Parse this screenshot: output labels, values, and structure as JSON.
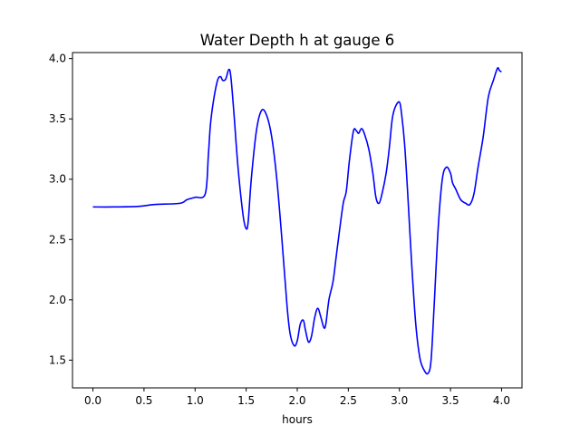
{
  "chart_data": {
    "type": "line",
    "title": "Water Depth h at gauge 6",
    "xlabel": "hours",
    "ylabel": "",
    "xlim": [
      -0.2,
      4.2
    ],
    "ylim": [
      1.27,
      4.05
    ],
    "xticks": [
      0.0,
      0.5,
      1.0,
      1.5,
      2.0,
      2.5,
      3.0,
      3.5,
      4.0
    ],
    "xtick_labels": [
      "0.0",
      "0.5",
      "1.0",
      "1.5",
      "2.0",
      "2.5",
      "3.0",
      "3.5",
      "4.0"
    ],
    "yticks": [
      1.5,
      2.0,
      2.5,
      3.0,
      3.5,
      4.0
    ],
    "ytick_labels": [
      "1.5",
      "2.0",
      "2.5",
      "3.0",
      "3.5",
      "4.0"
    ],
    "grid": false,
    "series": [
      {
        "name": "",
        "color": "#0000ff",
        "x": [
          0.0,
          0.2,
          0.45,
          0.6,
          0.85,
          0.92,
          1.0,
          1.1,
          1.13,
          1.15,
          1.18,
          1.22,
          1.25,
          1.27,
          1.3,
          1.33,
          1.35,
          1.38,
          1.42,
          1.47,
          1.5,
          1.52,
          1.55,
          1.6,
          1.65,
          1.7,
          1.75,
          1.8,
          1.85,
          1.9,
          1.93,
          1.97,
          2.0,
          2.03,
          2.06,
          2.08,
          2.11,
          2.14,
          2.17,
          2.2,
          2.23,
          2.26,
          2.28,
          2.31,
          2.35,
          2.38,
          2.41,
          2.45,
          2.48,
          2.51,
          2.55,
          2.58,
          2.6,
          2.63,
          2.66,
          2.7,
          2.74,
          2.77,
          2.8,
          2.83,
          2.87,
          2.9,
          2.93,
          2.96,
          3.0,
          3.02,
          3.05,
          3.08,
          3.12,
          3.16,
          3.2,
          3.24,
          3.28,
          3.31,
          3.34,
          3.38,
          3.42,
          3.46,
          3.5,
          3.52,
          3.55,
          3.6,
          3.65,
          3.69,
          3.73,
          3.77,
          3.82,
          3.87,
          3.92,
          3.96,
          3.98,
          4.0
        ],
        "y": [
          2.77,
          2.77,
          2.775,
          2.79,
          2.8,
          2.83,
          2.85,
          2.88,
          3.2,
          3.45,
          3.65,
          3.82,
          3.85,
          3.82,
          3.83,
          3.91,
          3.85,
          3.55,
          3.1,
          2.7,
          2.59,
          2.65,
          3.0,
          3.4,
          3.57,
          3.53,
          3.35,
          3.0,
          2.5,
          1.95,
          1.72,
          1.62,
          1.66,
          1.8,
          1.83,
          1.75,
          1.65,
          1.7,
          1.85,
          1.93,
          1.86,
          1.77,
          1.8,
          2.0,
          2.15,
          2.35,
          2.55,
          2.8,
          2.9,
          3.15,
          3.4,
          3.4,
          3.38,
          3.42,
          3.37,
          3.25,
          3.05,
          2.85,
          2.8,
          2.88,
          3.05,
          3.25,
          3.5,
          3.6,
          3.64,
          3.55,
          3.3,
          2.9,
          2.3,
          1.8,
          1.52,
          1.42,
          1.39,
          1.5,
          1.95,
          2.6,
          3.0,
          3.1,
          3.05,
          2.97,
          2.92,
          2.83,
          2.8,
          2.79,
          2.88,
          3.1,
          3.35,
          3.68,
          3.82,
          3.92,
          3.9,
          3.89
        ]
      }
    ]
  }
}
